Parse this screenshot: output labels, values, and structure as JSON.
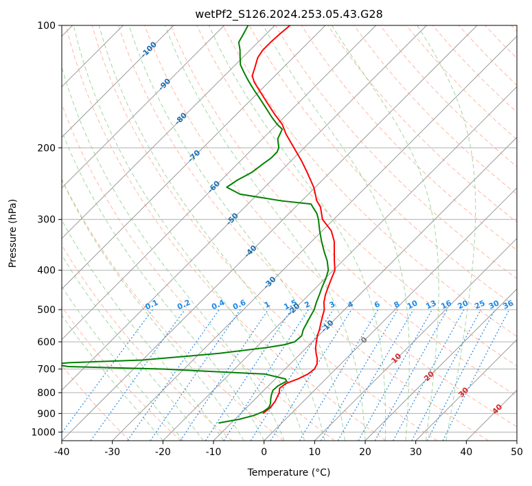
{
  "chart_data": {
    "type": "line",
    "title": "wetPf2_S126.2024.253.05.43.G28",
    "xlabel": "Temperature (°C)",
    "ylabel": "Pressure (hPa)",
    "xlim": [
      -40,
      50
    ],
    "ylim": [
      1050,
      100
    ],
    "y_scale": "log",
    "grid": true,
    "x_ticks": [
      -40,
      -30,
      -20,
      -10,
      0,
      10,
      20,
      30,
      40,
      50
    ],
    "y_ticks": [
      100,
      200,
      300,
      400,
      500,
      600,
      700,
      800,
      900,
      1000
    ],
    "skew": 45,
    "colors": {
      "temperature": "#ff0000",
      "dewpoint": "#008000",
      "isotherm": "#999999",
      "dry_adiabat": "#ff9977",
      "moist_adiabat": "#88cc88",
      "mixing_ratio": "#1e88e5",
      "frame": "#000000"
    },
    "series": [
      {
        "key": "temperature",
        "points": [
          [
            -5.6,
            900
          ],
          [
            -5.3,
            870
          ],
          [
            -5.6,
            840
          ],
          [
            -6.5,
            800
          ],
          [
            -7.3,
            780
          ],
          [
            -7.0,
            760
          ],
          [
            -5.5,
            740
          ],
          [
            -4.5,
            720
          ],
          [
            -4.2,
            700
          ],
          [
            -4.7,
            680
          ],
          [
            -5.7,
            660
          ],
          [
            -7.0,
            640
          ],
          [
            -8.2,
            620
          ],
          [
            -9.2,
            600
          ],
          [
            -10.2,
            580
          ],
          [
            -11.0,
            560
          ],
          [
            -12.0,
            540
          ],
          [
            -13.0,
            520
          ],
          [
            -14.0,
            500
          ],
          [
            -15.5,
            480
          ],
          [
            -16.7,
            460
          ],
          [
            -17.7,
            440
          ],
          [
            -18.7,
            420
          ],
          [
            -19.7,
            400
          ],
          [
            -21.6,
            380
          ],
          [
            -23.5,
            360
          ],
          [
            -25.5,
            340
          ],
          [
            -28.2,
            320
          ],
          [
            -32.2,
            300
          ],
          [
            -35.0,
            280
          ],
          [
            -37.0,
            270
          ],
          [
            -40.3,
            250
          ],
          [
            -44.5,
            230
          ],
          [
            -48.0,
            215
          ],
          [
            -52.0,
            200
          ],
          [
            -56.3,
            185
          ],
          [
            -59.0,
            175
          ],
          [
            -62.6,
            165
          ],
          [
            -66.2,
            155
          ],
          [
            -70.0,
            145
          ],
          [
            -72.8,
            138
          ],
          [
            -74.5,
            133
          ],
          [
            -75.6,
            127
          ],
          [
            -77.0,
            120
          ],
          [
            -77.5,
            115
          ],
          [
            -77.5,
            110
          ],
          [
            -77.3,
            105
          ],
          [
            -77.0,
            100
          ]
        ]
      },
      {
        "key": "dewpoint",
        "points": [
          [
            -12.5,
            950
          ],
          [
            -9.1,
            930
          ],
          [
            -7.0,
            910
          ],
          [
            -5.9,
            890
          ],
          [
            -5.6,
            870
          ],
          [
            -6.1,
            850
          ],
          [
            -6.9,
            830
          ],
          [
            -7.6,
            810
          ],
          [
            -8.2,
            790
          ],
          [
            -8.1,
            770
          ],
          [
            -7.3,
            750
          ],
          [
            -8.0,
            740
          ],
          [
            -13.0,
            720
          ],
          [
            -34.0,
            700
          ],
          [
            -53.5,
            690
          ],
          [
            -56.5,
            680
          ],
          [
            -54.0,
            675
          ],
          [
            -40.0,
            665
          ],
          [
            -31.5,
            650
          ],
          [
            -26.0,
            640
          ],
          [
            -18.0,
            620
          ],
          [
            -15.0,
            610
          ],
          [
            -13.5,
            600
          ],
          [
            -13.3,
            580
          ],
          [
            -14.2,
            560
          ],
          [
            -14.8,
            540
          ],
          [
            -15.4,
            520
          ],
          [
            -16.0,
            500
          ],
          [
            -17.0,
            480
          ],
          [
            -17.9,
            460
          ],
          [
            -18.9,
            440
          ],
          [
            -19.8,
            420
          ],
          [
            -21.0,
            400
          ],
          [
            -23.0,
            380
          ],
          [
            -25.5,
            360
          ],
          [
            -28.0,
            340
          ],
          [
            -30.5,
            320
          ],
          [
            -33.0,
            300
          ],
          [
            -34.5,
            290
          ],
          [
            -36.5,
            280
          ],
          [
            -37.5,
            275
          ],
          [
            -44.0,
            270
          ],
          [
            -53.5,
            260
          ],
          [
            -57.5,
            250
          ],
          [
            -56.8,
            240
          ],
          [
            -55.5,
            230
          ],
          [
            -55.0,
            220
          ],
          [
            -54.5,
            212
          ],
          [
            -54.5,
            205
          ],
          [
            -55.0,
            200
          ],
          [
            -57.0,
            190
          ],
          [
            -58.0,
            180
          ],
          [
            -60.0,
            175
          ],
          [
            -62.5,
            168
          ],
          [
            -66.0,
            158
          ],
          [
            -69.0,
            150
          ],
          [
            -71.0,
            145
          ],
          [
            -73.0,
            140
          ],
          [
            -75.0,
            135
          ],
          [
            -77.0,
            130
          ],
          [
            -79.0,
            125
          ],
          [
            -80.5,
            120
          ],
          [
            -82.0,
            115
          ],
          [
            -83.8,
            110
          ],
          [
            -84.5,
            105
          ],
          [
            -85.3,
            100
          ]
        ]
      }
    ],
    "isotherm_labels": [
      "-100",
      "-90",
      "-80",
      "-70",
      "-60",
      "-50",
      "-40",
      "-30",
      "-20",
      "-10",
      "0",
      "10",
      "20",
      "30",
      "40"
    ],
    "mixing_ratio_labels": [
      "0.1",
      "0.2",
      "0.4",
      "0.6",
      "1",
      "1.5",
      "2",
      "3",
      "4",
      "6",
      "8",
      "10",
      "13",
      "16",
      "20",
      "25",
      "30",
      "36"
    ]
  }
}
